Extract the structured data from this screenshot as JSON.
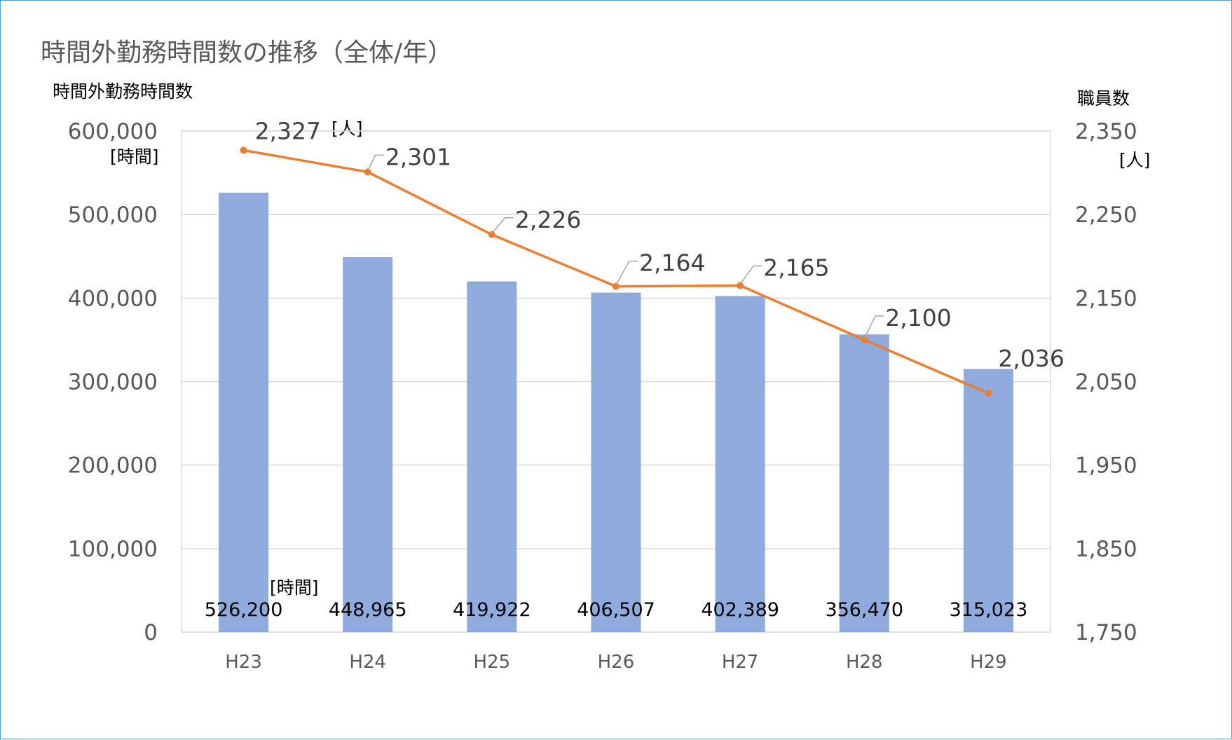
{
  "chart_data": {
    "type": "bar",
    "title": "時間外勤務時間数の推移（全体/年）",
    "categories": [
      "H23",
      "H24",
      "H25",
      "H26",
      "H27",
      "H28",
      "H29"
    ],
    "y_left": {
      "label": "時間外勤務時間数",
      "unit": "[時間]",
      "range": [
        0,
        600000
      ],
      "ticks": [
        "0",
        "100,000",
        "200,000",
        "300,000",
        "400,000",
        "500,000",
        "600,000"
      ]
    },
    "y_right": {
      "label": "職員数",
      "unit": "[人]",
      "range": [
        1750,
        2350
      ],
      "ticks": [
        "1,750",
        "1,850",
        "1,950",
        "2,050",
        "2,150",
        "2,250",
        "2,350"
      ]
    },
    "series": [
      {
        "type": "bar",
        "axis": "left",
        "color": "#8faadc",
        "values": [
          526200,
          448965,
          419922,
          406507,
          402389,
          356470,
          315023
        ],
        "labels": [
          "526,200",
          "448,965",
          "419,922",
          "406,507",
          "402,389",
          "356,470",
          "315,023"
        ],
        "label_unit": "[時間]"
      },
      {
        "type": "line",
        "axis": "right",
        "color": "#ed7d31",
        "values": [
          2327,
          2301,
          2226,
          2164,
          2165,
          2100,
          2036
        ],
        "labels": [
          "2,327",
          "2,301",
          "2,226",
          "2,164",
          "2,165",
          "2,100",
          "2,036"
        ],
        "label_unit": "[人]"
      }
    ],
    "grid": true,
    "legend": "none"
  }
}
